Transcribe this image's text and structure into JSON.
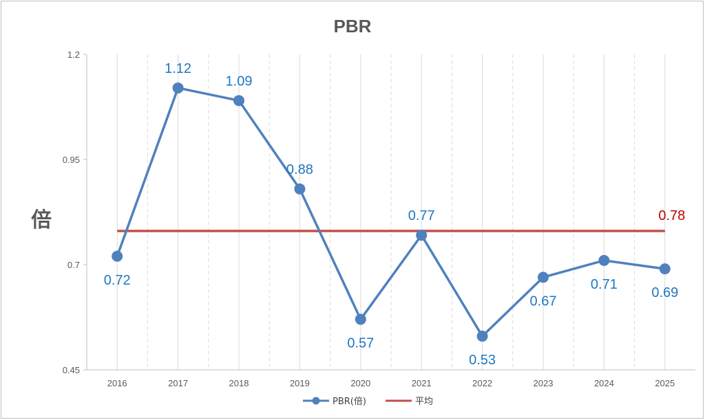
{
  "chart_data": {
    "type": "line",
    "title": "PBR",
    "ylabel": "倍",
    "xlabel": "",
    "categories": [
      "2016",
      "2017",
      "2018",
      "2019",
      "2020",
      "2021",
      "2022",
      "2023",
      "2024",
      "2025"
    ],
    "ylim": [
      0.45,
      1.2
    ],
    "yticks": [
      "0.45",
      "0.7",
      "0.95",
      "1.2"
    ],
    "series": [
      {
        "name": "PBR(倍)",
        "values": [
          0.72,
          1.12,
          1.09,
          0.88,
          0.57,
          0.77,
          0.53,
          0.67,
          0.71,
          0.69
        ],
        "labels": [
          "0.72",
          "1.12",
          "1.09",
          "0.88",
          "0.57",
          "0.77",
          "0.53",
          "0.67",
          "0.71",
          "0.69"
        ],
        "color": "#4f81bd"
      },
      {
        "name": "平均",
        "value": 0.78,
        "label": "0.78",
        "color": "#c0504d"
      }
    ],
    "grid": "vertical dashed",
    "legend": "bottom"
  },
  "colors": {
    "line": "#4f81bd",
    "average": "#c0504d",
    "data_label": "#1f77c0",
    "average_label": "#c00000"
  }
}
